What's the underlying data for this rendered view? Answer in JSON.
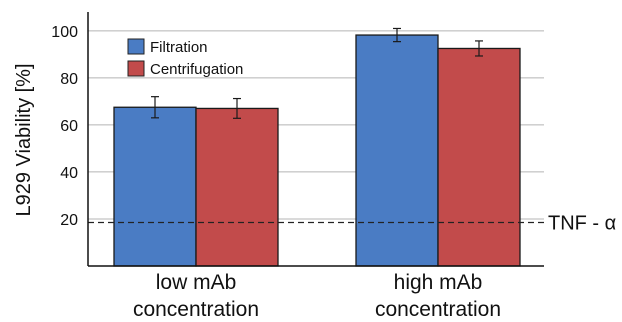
{
  "chart_data": {
    "type": "bar",
    "ylabel": "L929 Viability [%]",
    "ylim": [
      0,
      108
    ],
    "yticks": [
      20,
      40,
      60,
      80,
      100
    ],
    "grid": true,
    "legend_position": "top-left",
    "categories": [
      {
        "line1": "low mAb",
        "line2": "concentration"
      },
      {
        "line1": "high mAb",
        "line2": "concentration"
      }
    ],
    "series": [
      {
        "name": "Filtration",
        "color": "#4a7cc4",
        "values": [
          67.5,
          98.2
        ],
        "errors": [
          4.5,
          2.8
        ]
      },
      {
        "name": "Centrifugation",
        "color": "#c24b4b",
        "values": [
          67.0,
          92.5
        ],
        "errors": [
          4.2,
          3.2
        ]
      }
    ],
    "reference_line": {
      "label": "TNF - α",
      "value": 18.5,
      "style": "dashed"
    }
  }
}
